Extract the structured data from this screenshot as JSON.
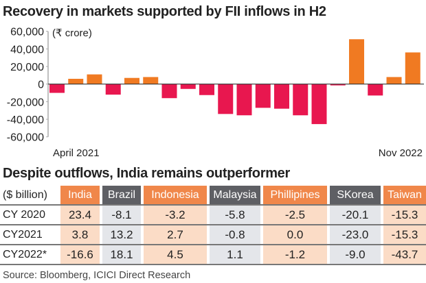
{
  "chart_data": {
    "type": "bar",
    "title": "Recovery in markets supported by FII inflows in H2",
    "unit_label": "(₹ crore)",
    "x_start_label": "April 2021",
    "x_end_label": "Nov 2022",
    "categories": [
      "Apr 2021",
      "May 2021",
      "Jun 2021",
      "Jul 2021",
      "Aug 2021",
      "Sep 2021",
      "Oct 2021",
      "Nov 2021",
      "Dec 2021",
      "Jan 2022",
      "Feb 2022",
      "Mar 2022",
      "Apr 2022",
      "May 2022",
      "Jun 2022",
      "Jul 2022",
      "Aug 2022",
      "Sep 2022",
      "Oct 2022",
      "Nov 2022"
    ],
    "values": [
      -10000,
      6000,
      11000,
      -12000,
      7000,
      8000,
      -16000,
      -5500,
      -12500,
      -34000,
      -35500,
      -27000,
      -28000,
      -35500,
      -45500,
      -1500,
      51000,
      -13000,
      8000,
      36000
    ],
    "ylim": [
      -60000,
      60000
    ],
    "yticks": [
      "60,000",
      "40,000",
      "20,000",
      "0",
      "-20,000",
      "-40,000",
      "-60,000"
    ],
    "ytick_values": [
      60000,
      40000,
      20000,
      0,
      -20000,
      -40000,
      -60000
    ],
    "grid": false,
    "colors": {
      "positive": "#f07a22",
      "negative": "#e8174f"
    }
  },
  "table": {
    "title": "Despite outflows, India remains outperformer",
    "unit": "($ billion)",
    "columns": [
      {
        "name": "India",
        "style": "o"
      },
      {
        "name": "Brazil",
        "style": "g"
      },
      {
        "name": "Indonesia",
        "style": "o"
      },
      {
        "name": "Malaysia",
        "style": "g"
      },
      {
        "name": "Phillipines",
        "style": "o"
      },
      {
        "name": "SKorea",
        "style": "g"
      },
      {
        "name": "Taiwan",
        "style": "o"
      }
    ],
    "rows": [
      {
        "label": "CY 2020",
        "values": [
          "23.4",
          "-8.1",
          "-3.2",
          "-5.8",
          "-2.5",
          "-20.1",
          "-15.3"
        ]
      },
      {
        "label": "CY2021",
        "values": [
          "3.8",
          "13.2",
          "2.7",
          "-0.8",
          "0.0",
          "-23.0",
          "-15.3"
        ]
      },
      {
        "label": "CY2022*",
        "values": [
          "-16.6",
          "18.1",
          "4.5",
          "1.1",
          "-1.2",
          "-9.0",
          "-43.7"
        ]
      }
    ]
  },
  "source": "Source: Bloomberg, ICICI Direct Research"
}
